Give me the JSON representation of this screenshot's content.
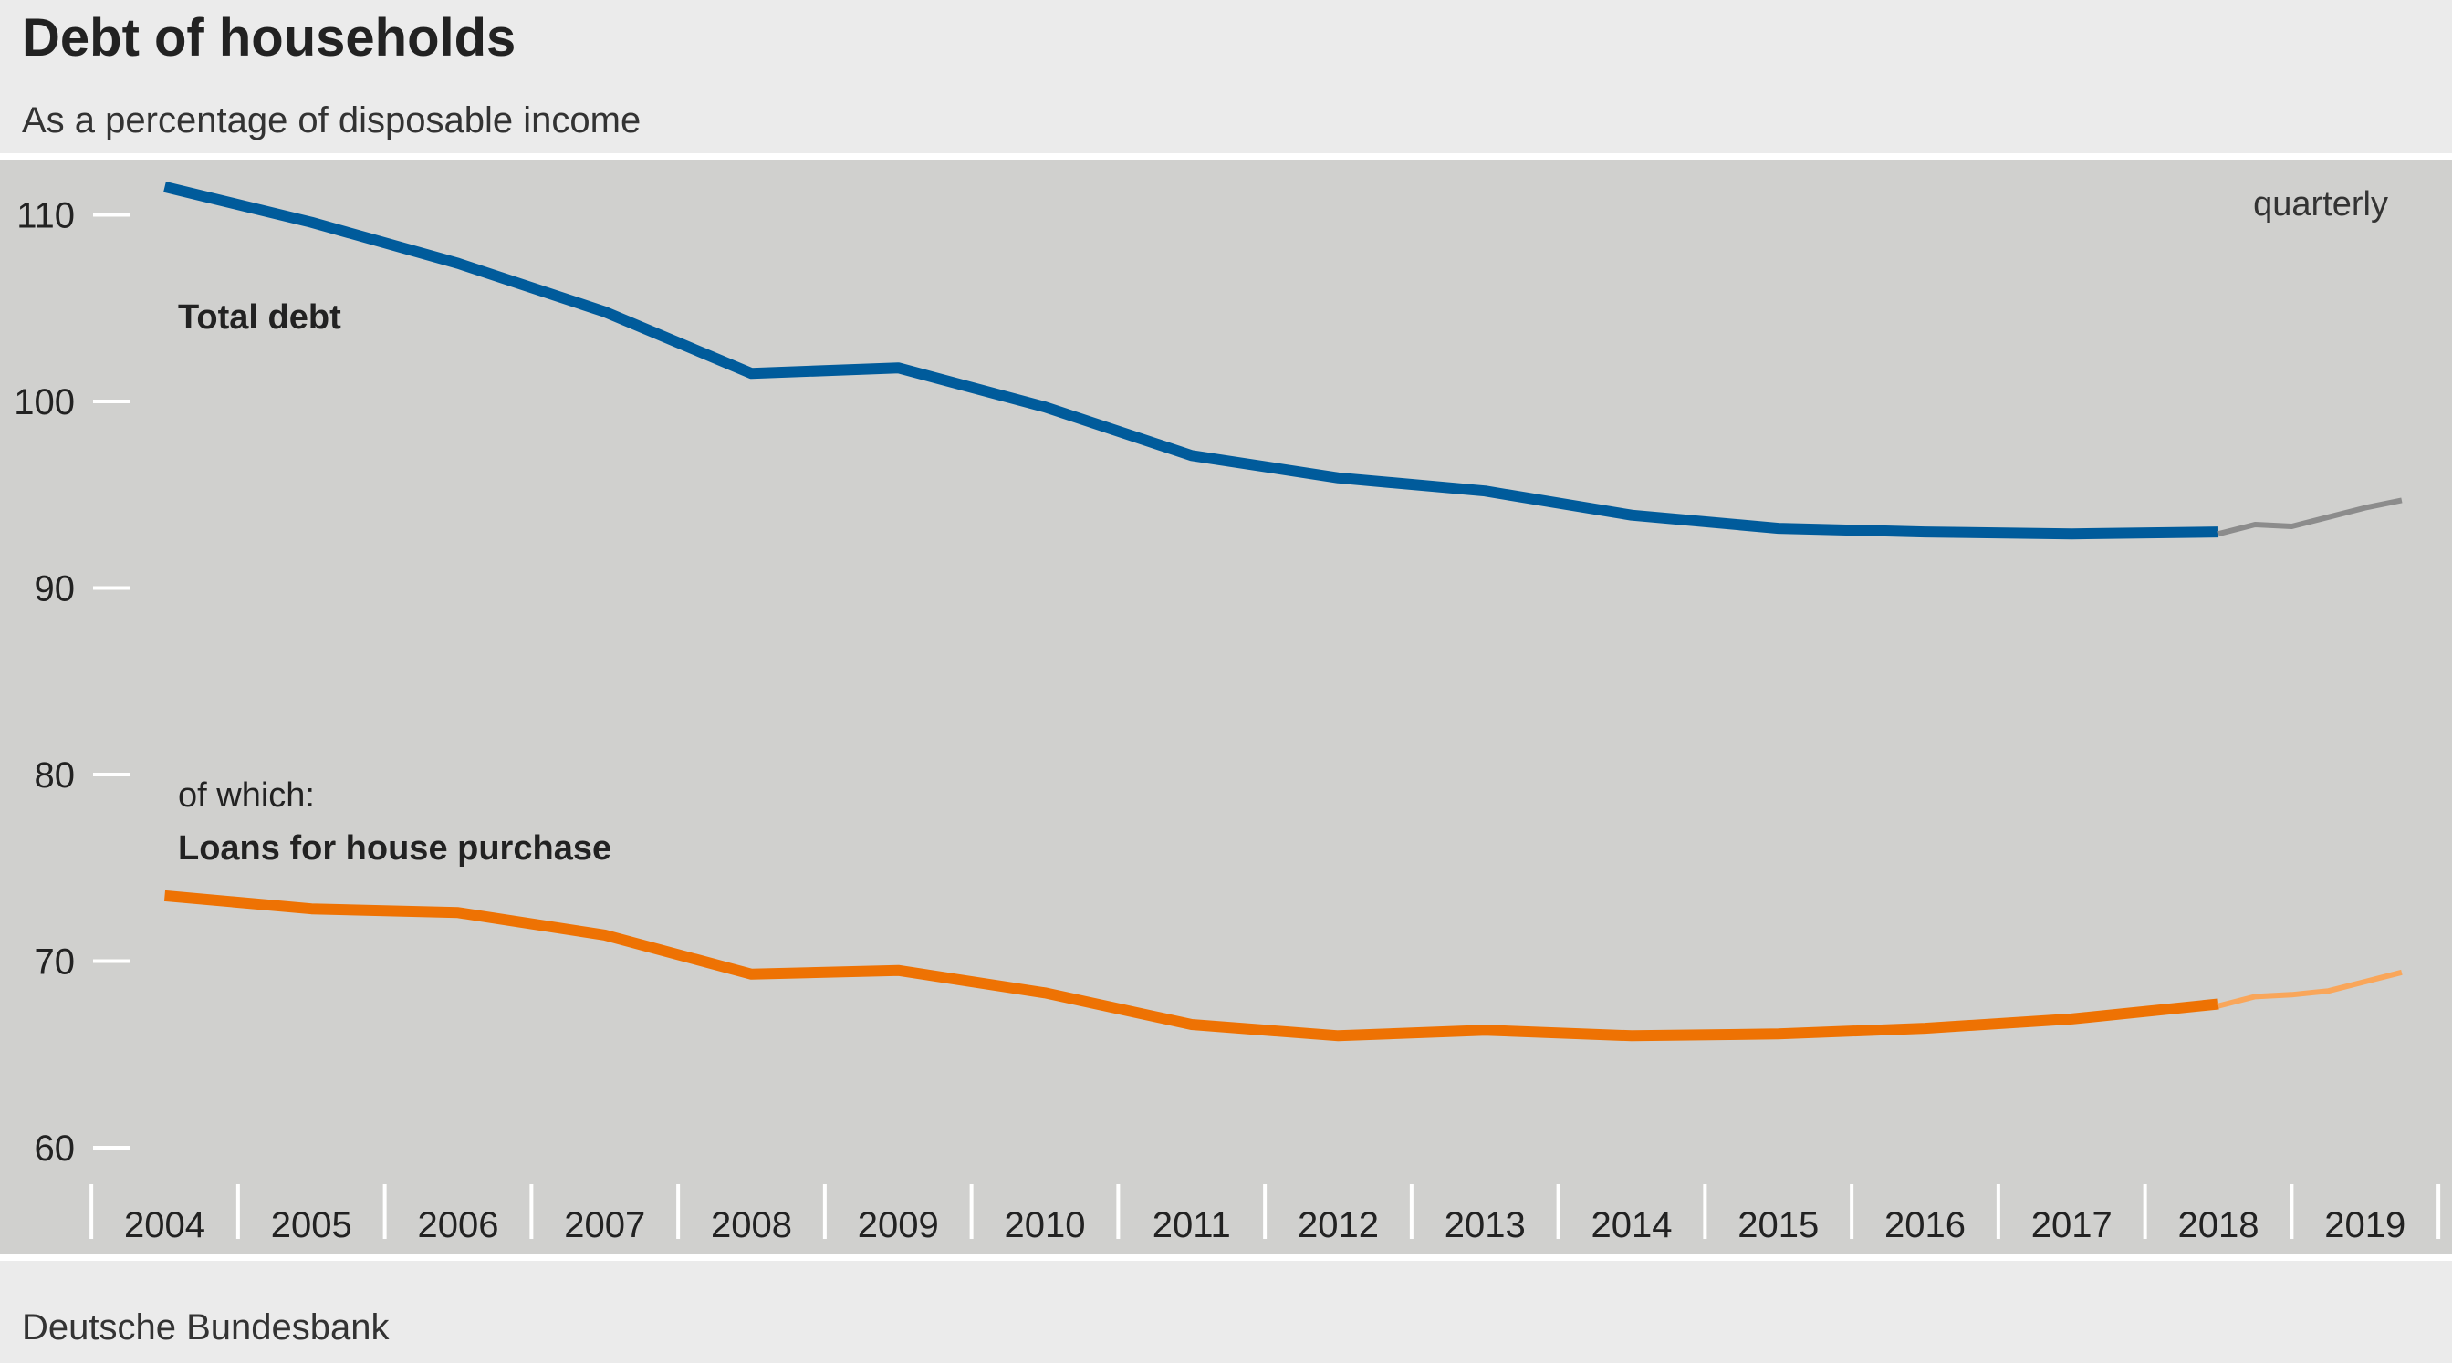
{
  "title": "Debt of households",
  "subtitle": "As a percentage of disposable income",
  "source": "Deutsche Bundesbank",
  "chart_data": {
    "type": "line",
    "frequency_note": "quarterly",
    "ylim": [
      60,
      112
    ],
    "y_ticks": [
      60,
      70,
      80,
      90,
      100,
      110
    ],
    "x_tick_labels": [
      "2004",
      "2005",
      "2006",
      "2007",
      "2008",
      "2009",
      "2010",
      "2011",
      "2012",
      "2013",
      "2014",
      "2015",
      "2016",
      "2017",
      "2018",
      "2019"
    ],
    "xlim": [
      2003.5,
      2019.5
    ],
    "grid": false,
    "series_labels": {
      "total": "Total debt",
      "housing_prefix": "of which:",
      "housing": "Loans for house purchase"
    },
    "series": [
      {
        "key": "total_annual",
        "color": "#005b9b",
        "points": [
          [
            2004,
            111.5
          ],
          [
            2005,
            109.6
          ],
          [
            2006,
            107.4
          ],
          [
            2007,
            104.8
          ],
          [
            2008,
            101.5
          ],
          [
            2009,
            101.8
          ],
          [
            2010,
            99.7
          ],
          [
            2011,
            97.1
          ],
          [
            2012,
            95.9
          ],
          [
            2013,
            95.2
          ],
          [
            2014,
            93.9
          ],
          [
            2015,
            93.2
          ],
          [
            2016,
            93.0
          ],
          [
            2017,
            92.9
          ],
          [
            2018,
            93.0
          ]
        ]
      },
      {
        "key": "total_quarterly",
        "color": "#8c8c8c",
        "points": [
          [
            2018.0,
            92.9
          ],
          [
            2018.25,
            93.4
          ],
          [
            2018.5,
            93.3
          ],
          [
            2018.75,
            93.8
          ],
          [
            2019.0,
            94.3
          ],
          [
            2019.25,
            94.7
          ]
        ]
      },
      {
        "key": "housing_annual",
        "color": "#ee7203",
        "points": [
          [
            2004,
            73.5
          ],
          [
            2005,
            72.8
          ],
          [
            2006,
            72.6
          ],
          [
            2007,
            71.4
          ],
          [
            2008,
            69.3
          ],
          [
            2009,
            69.5
          ],
          [
            2010,
            68.3
          ],
          [
            2011,
            66.6
          ],
          [
            2012,
            66.0
          ],
          [
            2013,
            66.3
          ],
          [
            2014,
            66.0
          ],
          [
            2015,
            66.1
          ],
          [
            2016,
            66.4
          ],
          [
            2017,
            66.9
          ],
          [
            2018,
            67.7
          ]
        ]
      },
      {
        "key": "housing_quarterly",
        "color": "#f9a65a",
        "points": [
          [
            2018.0,
            67.6
          ],
          [
            2018.25,
            68.1
          ],
          [
            2018.5,
            68.2
          ],
          [
            2018.75,
            68.4
          ],
          [
            2019.0,
            68.9
          ],
          [
            2019.25,
            69.4
          ]
        ]
      }
    ]
  }
}
